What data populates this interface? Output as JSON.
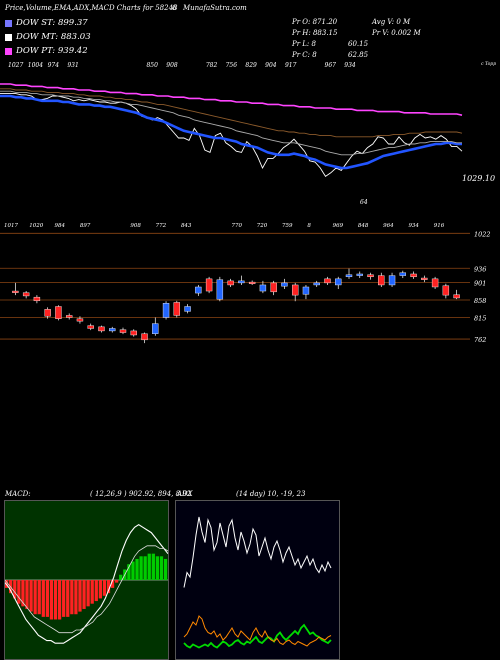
{
  "header": {
    "title": "Price,Volume,EMA,ADX,MACD Charts for 58248",
    "code_suffix": "6",
    "site": "MunafaSutra.com"
  },
  "legend": [
    {
      "label": "DOW ST: 899.37",
      "color": "#7777ff"
    },
    {
      "label": "DOW MT: 883.03",
      "color": "#ffffff"
    },
    {
      "label": "DOW PT: 939.42",
      "color": "#ff44ff"
    }
  ],
  "stats": {
    "pr_o": "Pr  O: 871.20",
    "avg_v": "Avg V: 0  M",
    "pr_h": "Pr  H: 883.15",
    "pr_v": "Pr  V: 0.002  M",
    "pr_l": "Pr  L: 8",
    "pr_l_val": "60.15",
    "pr_c": "Pr  C: 8",
    "pr_c_val": "62.85"
  },
  "chart_data": [
    {
      "type": "line",
      "name": "ema-panel",
      "top_labels": [
        "1027",
        "1004",
        "974",
        "931",
        "",
        "",
        "",
        "850",
        "908",
        "",
        "782",
        "756",
        "829",
        "904",
        "917",
        "",
        "967",
        "934",
        "",
        "",
        "",
        "",
        ""
      ],
      "right_label": "1029.10",
      "corner_label": "c Topp",
      "bottom_label": "64",
      "ylim": [
        0,
        1
      ],
      "series": [
        {
          "color": "#ffffff",
          "values": [
            0.82,
            0.82,
            0.82,
            0.82,
            0.81,
            0.81,
            0.8,
            0.77,
            0.77,
            0.78,
            0.8,
            0.8,
            0.79,
            0.78,
            0.76,
            0.77,
            0.76,
            0.77,
            0.76,
            0.75,
            0.75,
            0.74,
            0.74,
            0.75,
            0.74,
            0.72,
            0.69,
            0.63,
            0.62,
            0.6,
            0.62,
            0.6,
            0.55,
            0.5,
            0.45,
            0.45,
            0.43,
            0.53,
            0.47,
            0.35,
            0.33,
            0.47,
            0.49,
            0.41,
            0.38,
            0.34,
            0.33,
            0.42,
            0.38,
            0.3,
            0.2,
            0.28,
            0.28,
            0.32,
            0.37,
            0.4,
            0.44,
            0.39,
            0.34,
            0.26,
            0.25,
            0.2,
            0.13,
            0.16,
            0.2,
            0.18,
            0.24,
            0.3,
            0.34,
            0.32,
            0.37,
            0.4,
            0.46,
            0.45,
            0.4,
            0.4,
            0.46,
            0.41,
            0.39,
            0.45,
            0.48,
            0.45,
            0.46,
            0.44,
            0.47,
            0.44,
            0.38,
            0.38,
            0.34
          ]
        },
        {
          "color": "#2255ff",
          "values": [
            0.8,
            0.8,
            0.8,
            0.79,
            0.79,
            0.78,
            0.78,
            0.77,
            0.76,
            0.76,
            0.76,
            0.76,
            0.75,
            0.75,
            0.74,
            0.73,
            0.73,
            0.73,
            0.72,
            0.72,
            0.71,
            0.71,
            0.7,
            0.69,
            0.68,
            0.67,
            0.66,
            0.64,
            0.62,
            0.61,
            0.6,
            0.59,
            0.57,
            0.55,
            0.53,
            0.51,
            0.5,
            0.49,
            0.48,
            0.47,
            0.46,
            0.45,
            0.45,
            0.44,
            0.43,
            0.42,
            0.4,
            0.39,
            0.38,
            0.37,
            0.35,
            0.33,
            0.32,
            0.31,
            0.31,
            0.31,
            0.32,
            0.31,
            0.3,
            0.28,
            0.27,
            0.25,
            0.23,
            0.22,
            0.21,
            0.2,
            0.2,
            0.21,
            0.22,
            0.23,
            0.24,
            0.26,
            0.28,
            0.3,
            0.31,
            0.32,
            0.33,
            0.34,
            0.35,
            0.36,
            0.37,
            0.38,
            0.39,
            0.4,
            0.4,
            0.41,
            0.41,
            0.4,
            0.4
          ]
        },
        {
          "color": "#ff44ff",
          "values": [
            0.9,
            0.9,
            0.9,
            0.89,
            0.89,
            0.89,
            0.88,
            0.88,
            0.88,
            0.87,
            0.87,
            0.87,
            0.86,
            0.86,
            0.86,
            0.85,
            0.85,
            0.85,
            0.84,
            0.84,
            0.84,
            0.83,
            0.83,
            0.83,
            0.82,
            0.82,
            0.82,
            0.81,
            0.81,
            0.81,
            0.8,
            0.8,
            0.8,
            0.79,
            0.79,
            0.79,
            0.78,
            0.78,
            0.78,
            0.77,
            0.77,
            0.77,
            0.76,
            0.76,
            0.76,
            0.75,
            0.75,
            0.75,
            0.74,
            0.74,
            0.74,
            0.73,
            0.73,
            0.73,
            0.72,
            0.72,
            0.72,
            0.71,
            0.71,
            0.71,
            0.7,
            0.7,
            0.7,
            0.7,
            0.69,
            0.69,
            0.69,
            0.69,
            0.68,
            0.68,
            0.68,
            0.68,
            0.67,
            0.67,
            0.67,
            0.67,
            0.67,
            0.66,
            0.66,
            0.66,
            0.66,
            0.66,
            0.65,
            0.65,
            0.65,
            0.65,
            0.65,
            0.65,
            0.64
          ]
        },
        {
          "color": "#8b5a2b",
          "values": [
            0.86,
            0.86,
            0.86,
            0.85,
            0.85,
            0.85,
            0.84,
            0.84,
            0.84,
            0.83,
            0.83,
            0.83,
            0.82,
            0.82,
            0.82,
            0.81,
            0.81,
            0.8,
            0.8,
            0.8,
            0.79,
            0.79,
            0.78,
            0.78,
            0.77,
            0.77,
            0.76,
            0.75,
            0.75,
            0.74,
            0.73,
            0.73,
            0.72,
            0.71,
            0.7,
            0.69,
            0.68,
            0.67,
            0.66,
            0.65,
            0.64,
            0.63,
            0.62,
            0.61,
            0.6,
            0.59,
            0.58,
            0.57,
            0.56,
            0.55,
            0.54,
            0.53,
            0.52,
            0.51,
            0.51,
            0.5,
            0.5,
            0.49,
            0.49,
            0.48,
            0.48,
            0.47,
            0.47,
            0.47,
            0.46,
            0.46,
            0.46,
            0.46,
            0.46,
            0.46,
            0.46,
            0.46,
            0.47,
            0.47,
            0.47,
            0.48,
            0.48,
            0.48,
            0.49,
            0.49,
            0.49,
            0.5,
            0.5,
            0.5,
            0.5,
            0.5,
            0.5,
            0.5,
            0.49
          ]
        },
        {
          "color": "#aaaaaa",
          "values": [
            0.84,
            0.84,
            0.84,
            0.83,
            0.83,
            0.83,
            0.82,
            0.82,
            0.81,
            0.81,
            0.81,
            0.8,
            0.8,
            0.8,
            0.79,
            0.79,
            0.78,
            0.78,
            0.77,
            0.77,
            0.76,
            0.76,
            0.75,
            0.75,
            0.74,
            0.73,
            0.73,
            0.72,
            0.71,
            0.7,
            0.69,
            0.68,
            0.67,
            0.66,
            0.64,
            0.63,
            0.62,
            0.6,
            0.59,
            0.58,
            0.57,
            0.56,
            0.55,
            0.54,
            0.53,
            0.51,
            0.5,
            0.49,
            0.48,
            0.47,
            0.45,
            0.44,
            0.43,
            0.42,
            0.41,
            0.41,
            0.41,
            0.4,
            0.39,
            0.38,
            0.37,
            0.36,
            0.34,
            0.33,
            0.32,
            0.31,
            0.31,
            0.31,
            0.32,
            0.32,
            0.33,
            0.34,
            0.35,
            0.36,
            0.37,
            0.37,
            0.38,
            0.39,
            0.4,
            0.4,
            0.41,
            0.41,
            0.42,
            0.42,
            0.42,
            0.42,
            0.42,
            0.41,
            0.41
          ]
        }
      ]
    },
    {
      "type": "candlestick",
      "name": "price-panel",
      "top_labels": [
        "1017",
        "1020",
        "984",
        "897",
        "",
        "908",
        "772",
        "843",
        "",
        "770",
        "720",
        "759",
        "8",
        "969",
        "848",
        "964",
        "934",
        "916"
      ],
      "axis_labels": [
        "1022",
        "936",
        "901",
        "858",
        "815",
        "762"
      ],
      "levels": [
        1022,
        936,
        901,
        858,
        815,
        762
      ],
      "ylim": [
        740,
        1035
      ],
      "candles": [
        {
          "o": 880,
          "c": 876,
          "h": 900,
          "l": 870
        },
        {
          "o": 876,
          "c": 868,
          "h": 880,
          "l": 862
        },
        {
          "o": 865,
          "c": 856,
          "h": 870,
          "l": 850
        },
        {
          "o": 835,
          "c": 818,
          "h": 840,
          "l": 812
        },
        {
          "o": 842,
          "c": 812,
          "h": 845,
          "l": 808
        },
        {
          "o": 820,
          "c": 815,
          "h": 825,
          "l": 810
        },
        {
          "o": 812,
          "c": 806,
          "h": 818,
          "l": 800
        },
        {
          "o": 795,
          "c": 788,
          "h": 800,
          "l": 784
        },
        {
          "o": 792,
          "c": 782,
          "h": 795,
          "l": 778
        },
        {
          "o": 782,
          "c": 788,
          "h": 792,
          "l": 778
        },
        {
          "o": 785,
          "c": 778,
          "h": 790,
          "l": 774
        },
        {
          "o": 782,
          "c": 772,
          "h": 786,
          "l": 768
        },
        {
          "o": 775,
          "c": 760,
          "h": 778,
          "l": 752
        },
        {
          "o": 775,
          "c": 800,
          "h": 815,
          "l": 770
        },
        {
          "o": 815,
          "c": 850,
          "h": 855,
          "l": 810
        },
        {
          "o": 852,
          "c": 820,
          "h": 856,
          "l": 815
        },
        {
          "o": 830,
          "c": 842,
          "h": 848,
          "l": 825
        },
        {
          "o": 875,
          "c": 890,
          "h": 895,
          "l": 868
        },
        {
          "o": 910,
          "c": 880,
          "h": 915,
          "l": 875
        },
        {
          "o": 860,
          "c": 908,
          "h": 915,
          "l": 855
        },
        {
          "o": 905,
          "c": 895,
          "h": 910,
          "l": 890
        },
        {
          "o": 900,
          "c": 905,
          "h": 918,
          "l": 895
        },
        {
          "o": 902,
          "c": 898,
          "h": 906,
          "l": 895
        },
        {
          "o": 880,
          "c": 895,
          "h": 905,
          "l": 875
        },
        {
          "o": 900,
          "c": 878,
          "h": 905,
          "l": 870
        },
        {
          "o": 892,
          "c": 900,
          "h": 910,
          "l": 885
        },
        {
          "o": 895,
          "c": 870,
          "h": 900,
          "l": 855
        },
        {
          "o": 872,
          "c": 890,
          "h": 895,
          "l": 860
        },
        {
          "o": 895,
          "c": 900,
          "h": 905,
          "l": 890
        },
        {
          "o": 910,
          "c": 900,
          "h": 915,
          "l": 895
        },
        {
          "o": 895,
          "c": 910,
          "h": 915,
          "l": 885
        },
        {
          "o": 915,
          "c": 920,
          "h": 935,
          "l": 910
        },
        {
          "o": 918,
          "c": 922,
          "h": 928,
          "l": 912
        },
        {
          "o": 920,
          "c": 915,
          "h": 925,
          "l": 908
        },
        {
          "o": 918,
          "c": 895,
          "h": 925,
          "l": 890
        },
        {
          "o": 895,
          "c": 918,
          "h": 925,
          "l": 890
        },
        {
          "o": 918,
          "c": 925,
          "h": 930,
          "l": 912
        },
        {
          "o": 922,
          "c": 915,
          "h": 928,
          "l": 910
        },
        {
          "o": 912,
          "c": 908,
          "h": 918,
          "l": 902
        },
        {
          "o": 910,
          "c": 890,
          "h": 915,
          "l": 885
        },
        {
          "o": 893,
          "c": 870,
          "h": 898,
          "l": 862
        },
        {
          "o": 871,
          "c": 863,
          "h": 883,
          "l": 860
        }
      ]
    },
    {
      "type": "bar",
      "name": "macd-panel",
      "title": "MACD:",
      "params": "( 12,26,9 ) 902.92,  894,  8.92",
      "values": [
        -3,
        -5,
        -7,
        -9,
        -10,
        -11,
        -12,
        -13,
        -13,
        -14,
        -14,
        -15,
        -15,
        -15,
        -14,
        -14,
        -13,
        -13,
        -12,
        -11,
        -10,
        -9,
        -8,
        -7,
        -6,
        -5,
        -3,
        -1,
        2,
        4,
        6,
        7,
        8,
        9,
        9,
        10,
        10,
        9,
        9,
        8
      ],
      "macd_line": [
        -1,
        -3,
        -6,
        -9,
        -12,
        -15,
        -17,
        -19,
        -21,
        -22,
        -23,
        -23,
        -24,
        -24,
        -24,
        -23,
        -22,
        -21,
        -20,
        -18,
        -16,
        -14,
        -12,
        -10,
        -7,
        -3,
        1,
        6,
        11,
        15,
        18,
        20,
        21,
        20,
        19,
        18,
        16,
        14,
        12,
        10
      ],
      "signal_line": [
        0,
        -2,
        -4,
        -6,
        -8,
        -10,
        -12,
        -14,
        -15,
        -16,
        -17,
        -18,
        -19,
        -20,
        -20,
        -20,
        -20,
        -19,
        -19,
        -18,
        -17,
        -16,
        -14,
        -13,
        -11,
        -9,
        -6,
        -3,
        0,
        3,
        6,
        9,
        11,
        12,
        13,
        13,
        13,
        12,
        12,
        11
      ],
      "ylim": [
        -30,
        30
      ]
    },
    {
      "type": "line",
      "name": "adx-panel",
      "title": "ADX",
      "params": "(14  day) 10,  -19,  23",
      "ylim": [
        0,
        100
      ],
      "series": [
        {
          "color": "#ffffff",
          "values": [
            45,
            55,
            52,
            65,
            80,
            92,
            82,
            75,
            90,
            85,
            70,
            75,
            88,
            80,
            72,
            86,
            90,
            78,
            70,
            82,
            76,
            68,
            74,
            84,
            80,
            66,
            72,
            78,
            70,
            64,
            72,
            76,
            70,
            62,
            68,
            72,
            66,
            60,
            64,
            58,
            62,
            66,
            60,
            64,
            58,
            55,
            60,
            56,
            62,
            58
          ]
        },
        {
          "color": "#00dd00",
          "values": [
            8,
            6,
            5,
            7,
            6,
            5,
            6,
            7,
            6,
            8,
            6,
            5,
            7,
            9,
            8,
            6,
            7,
            9,
            10,
            8,
            7,
            9,
            8,
            10,
            12,
            9,
            8,
            10,
            12,
            11,
            9,
            13,
            15,
            12,
            10,
            12,
            14,
            16,
            14,
            18,
            20,
            17,
            14,
            15,
            13,
            12,
            10,
            9,
            8,
            10
          ]
        },
        {
          "color": "#ff8800",
          "values": [
            12,
            14,
            18,
            22,
            20,
            26,
            24,
            18,
            15,
            14,
            16,
            12,
            14,
            10,
            12,
            15,
            18,
            14,
            12,
            16,
            14,
            12,
            10,
            15,
            18,
            14,
            12,
            16,
            12,
            10,
            9,
            11,
            8,
            7,
            9,
            10,
            8,
            7,
            9,
            8,
            7,
            6,
            8,
            9,
            10,
            12,
            11,
            10,
            12,
            13
          ]
        }
      ]
    }
  ]
}
